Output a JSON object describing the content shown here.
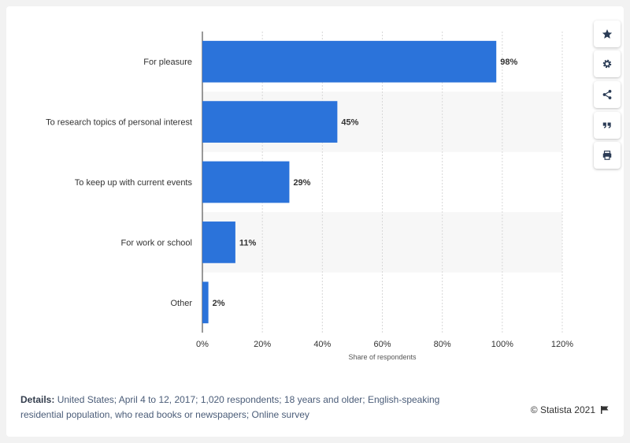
{
  "chart_data": {
    "type": "bar",
    "orientation": "horizontal",
    "categories": [
      "For pleasure",
      "To research topics of personal interest",
      "To keep up with current events",
      "For work or school",
      "Other"
    ],
    "values": [
      98,
      45,
      29,
      11,
      2
    ],
    "value_labels": [
      "98%",
      "45%",
      "29%",
      "11%",
      "2%"
    ],
    "xlim": [
      0,
      120
    ],
    "xticks": [
      0,
      20,
      40,
      60,
      80,
      100,
      120
    ],
    "xtick_labels": [
      "0%",
      "20%",
      "40%",
      "60%",
      "80%",
      "100%",
      "120%"
    ],
    "xlabel": "Share of respondents",
    "ylabel": "",
    "title": "",
    "grid": true,
    "legend": "none",
    "bar_color": "#2b73da"
  },
  "footer": {
    "details_label": "Details:",
    "details_text": "United States; April 4 to 12, 2017; 1,020 respondents; 18 years and older; English-speaking residential population, who read books or newspapers; Online survey",
    "copyright": "© Statista 2021"
  },
  "toolbar": {
    "icons": [
      "star-icon",
      "gear-icon",
      "share-icon",
      "quote-icon",
      "print-icon"
    ]
  },
  "colors": {
    "bar": "#2b73da",
    "band": "#f7f7f7",
    "grid": "#d8d8d8",
    "text": "#333333",
    "details": "#4a5c78"
  }
}
